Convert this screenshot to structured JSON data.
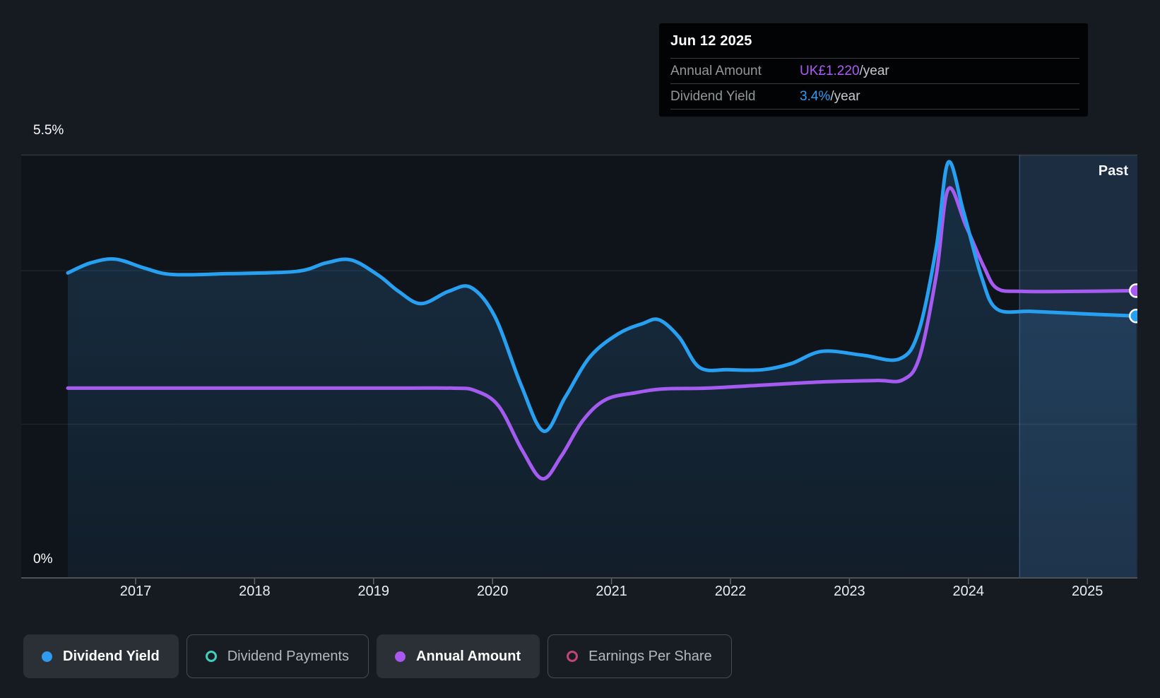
{
  "tooltip": {
    "date": "Jun 12 2025",
    "rows": [
      {
        "label": "Annual Amount",
        "value": "UK£1.220",
        "suffix": "/year",
        "value_color": "#ae5cf7"
      },
      {
        "label": "Dividend Yield",
        "value": "3.4%",
        "suffix": "/year",
        "value_color": "#2e9df5"
      }
    ]
  },
  "axis": {
    "y_top_label": "5.5%",
    "y_bottom_label": "0%",
    "x_ticks": [
      "2017",
      "2018",
      "2019",
      "2020",
      "2021",
      "2022",
      "2023",
      "2024",
      "2025"
    ],
    "past_label": "Past"
  },
  "legend": [
    {
      "label": "Dividend Yield",
      "color": "#2e9bf0",
      "active": true,
      "marker": "filled"
    },
    {
      "label": "Dividend Payments",
      "color": "#3fd0bd",
      "active": false,
      "marker": "ring"
    },
    {
      "label": "Annual Amount",
      "color": "#a958f0",
      "active": true,
      "marker": "filled"
    },
    {
      "label": "Earnings Per Share",
      "color": "#c24578",
      "active": false,
      "marker": "ring"
    }
  ],
  "colors": {
    "page_bg": "#161a21",
    "plot_bg": "#0f141b",
    "grid_minor": "rgba(255,255,255,0.07)",
    "grid_top": "rgba(255,255,255,0.13)",
    "axis_line": "#4e5257",
    "tick_mark": "#62666c",
    "tick_text": "#eceff1",
    "area_fill_top": "rgba(50,135,200,0.24)",
    "area_fill_bottom": "rgba(50,135,200,0.08)",
    "past_band": "rgba(90,160,230,0.10)",
    "past_edge": "rgba(130,180,235,0.30)",
    "marker_stroke": "#ffffff",
    "yield_line": "#27a0f2",
    "amount_line": "#a55bef"
  },
  "chart_data": {
    "type": "line",
    "title": "Dividend yield history",
    "x_range": [
      2016.43,
      2025.41
    ],
    "ylim_percent": [
      0,
      5.5
    ],
    "gridlines_percent": [
      2,
      4
    ],
    "past_region_start": 2024.43,
    "legend_position": "bottom",
    "grid": true,
    "series": [
      {
        "name": "Dividend Yield",
        "unit": "%",
        "end_marker": true,
        "points": [
          [
            2016.43,
            3.97
          ],
          [
            2016.62,
            4.1
          ],
          [
            2016.83,
            4.15
          ],
          [
            2017.08,
            4.03
          ],
          [
            2017.31,
            3.95
          ],
          [
            2017.76,
            3.96
          ],
          [
            2018.35,
            3.99
          ],
          [
            2018.6,
            4.1
          ],
          [
            2018.81,
            4.14
          ],
          [
            2019.04,
            3.94
          ],
          [
            2019.21,
            3.73
          ],
          [
            2019.4,
            3.57
          ],
          [
            2019.63,
            3.73
          ],
          [
            2019.82,
            3.78
          ],
          [
            2020.02,
            3.4
          ],
          [
            2020.24,
            2.51
          ],
          [
            2020.43,
            1.91
          ],
          [
            2020.61,
            2.35
          ],
          [
            2020.82,
            2.88
          ],
          [
            2021.06,
            3.18
          ],
          [
            2021.26,
            3.31
          ],
          [
            2021.4,
            3.36
          ],
          [
            2021.57,
            3.13
          ],
          [
            2021.74,
            2.74
          ],
          [
            2021.98,
            2.71
          ],
          [
            2022.27,
            2.71
          ],
          [
            2022.51,
            2.79
          ],
          [
            2022.77,
            2.95
          ],
          [
            2023.11,
            2.9
          ],
          [
            2023.42,
            2.85
          ],
          [
            2023.58,
            3.2
          ],
          [
            2023.73,
            4.3
          ],
          [
            2023.83,
            5.41
          ],
          [
            2023.96,
            4.76
          ],
          [
            2024.11,
            3.92
          ],
          [
            2024.24,
            3.5
          ],
          [
            2024.53,
            3.47
          ],
          [
            2024.94,
            3.44
          ],
          [
            2025.41,
            3.41
          ]
        ]
      },
      {
        "name": "Annual Amount",
        "unit": "yield-equivalent",
        "end_marker": true,
        "points": [
          [
            2016.43,
            2.47
          ],
          [
            2017.5,
            2.47
          ],
          [
            2018.24,
            2.47
          ],
          [
            2019.2,
            2.47
          ],
          [
            2019.66,
            2.47
          ],
          [
            2019.85,
            2.44
          ],
          [
            2020.05,
            2.24
          ],
          [
            2020.25,
            1.66
          ],
          [
            2020.42,
            1.29
          ],
          [
            2020.58,
            1.59
          ],
          [
            2020.76,
            2.05
          ],
          [
            2020.95,
            2.32
          ],
          [
            2021.2,
            2.41
          ],
          [
            2021.44,
            2.46
          ],
          [
            2021.8,
            2.47
          ],
          [
            2022.27,
            2.51
          ],
          [
            2022.75,
            2.55
          ],
          [
            2023.22,
            2.57
          ],
          [
            2023.45,
            2.58
          ],
          [
            2023.59,
            2.88
          ],
          [
            2023.73,
            3.94
          ],
          [
            2023.83,
            5.06
          ],
          [
            2023.98,
            4.58
          ],
          [
            2024.13,
            4.05
          ],
          [
            2024.24,
            3.77
          ],
          [
            2024.45,
            3.73
          ],
          [
            2024.94,
            3.73
          ],
          [
            2025.41,
            3.74
          ]
        ]
      }
    ]
  }
}
